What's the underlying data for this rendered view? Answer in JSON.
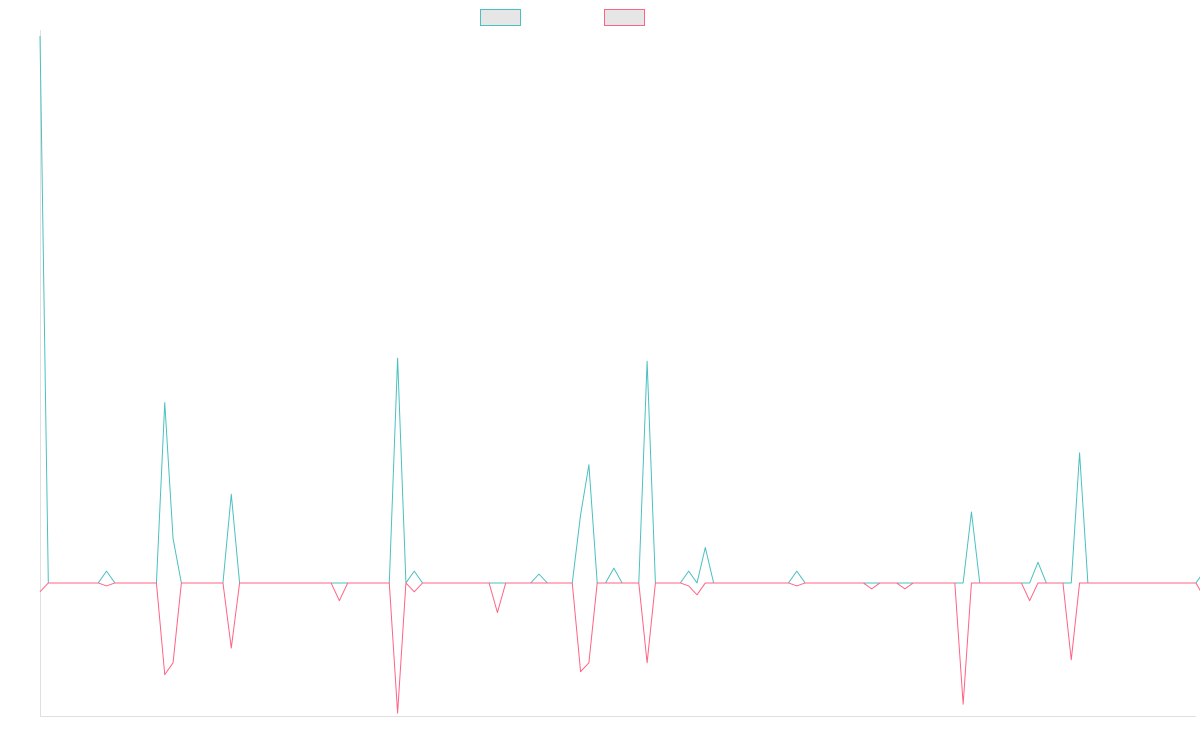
{
  "chart_data": {
    "type": "line",
    "title": "",
    "xlabel": "",
    "ylabel": "",
    "x_count": 140,
    "ylim": [
      -45,
      185
    ],
    "grid": false,
    "legend": "top-center",
    "series": [
      {
        "name": "",
        "color": "#4bc0c0",
        "fill": "#e6e6e6",
        "values": [
          185,
          0,
          0,
          0,
          0,
          0,
          0,
          0,
          4,
          0,
          0,
          0,
          0,
          0,
          0,
          61,
          15,
          0,
          0,
          0,
          0,
          0,
          0,
          30,
          0,
          0,
          0,
          0,
          0,
          0,
          0,
          0,
          0,
          0,
          0,
          0,
          0,
          0,
          0,
          0,
          0,
          0,
          0,
          76,
          0,
          4,
          0,
          0,
          0,
          0,
          0,
          0,
          0,
          0,
          0,
          0,
          0,
          0,
          0,
          0,
          3,
          0,
          0,
          0,
          0,
          23,
          40,
          0,
          0,
          5,
          0,
          0,
          0,
          75,
          0,
          0,
          0,
          0,
          4,
          0,
          12,
          0,
          0,
          0,
          0,
          0,
          0,
          0,
          0,
          0,
          0,
          4,
          0,
          0,
          0,
          0,
          0,
          0,
          0,
          0,
          0,
          0,
          0,
          0,
          0,
          0,
          0,
          0,
          0,
          0,
          0,
          0,
          24,
          0,
          0,
          0,
          0,
          0,
          0,
          0,
          7,
          0,
          0,
          0,
          0,
          44,
          0,
          0,
          0,
          0,
          0,
          0,
          0,
          0,
          0,
          0,
          0,
          0,
          0,
          0,
          4
        ]
      },
      {
        "name": "",
        "color": "#ff6384",
        "fill": "#e6e6e6",
        "values": [
          -3,
          0,
          0,
          0,
          0,
          0,
          0,
          0,
          -1,
          0,
          0,
          0,
          0,
          0,
          0,
          -31,
          -27,
          0,
          0,
          0,
          0,
          0,
          0,
          -22,
          0,
          0,
          0,
          0,
          0,
          0,
          0,
          0,
          0,
          0,
          0,
          0,
          -6,
          0,
          0,
          0,
          0,
          0,
          0,
          -44,
          0,
          -3,
          0,
          0,
          0,
          0,
          0,
          0,
          0,
          0,
          0,
          -10,
          0,
          0,
          0,
          0,
          0,
          0,
          0,
          0,
          0,
          -30,
          -27,
          0,
          0,
          0,
          0,
          0,
          0,
          -27,
          0,
          0,
          0,
          0,
          -1,
          -4,
          0,
          0,
          0,
          0,
          0,
          0,
          0,
          0,
          0,
          0,
          0,
          -1,
          0,
          0,
          0,
          0,
          0,
          0,
          0,
          0,
          -2,
          0,
          0,
          0,
          -2,
          0,
          0,
          0,
          0,
          0,
          0,
          -41,
          0,
          0,
          0,
          0,
          0,
          0,
          0,
          -6,
          0,
          0,
          0,
          0,
          -26,
          0,
          0,
          0,
          0,
          0,
          0,
          0,
          0,
          0,
          0,
          0,
          0,
          0,
          0,
          0,
          -5
        ]
      }
    ]
  }
}
